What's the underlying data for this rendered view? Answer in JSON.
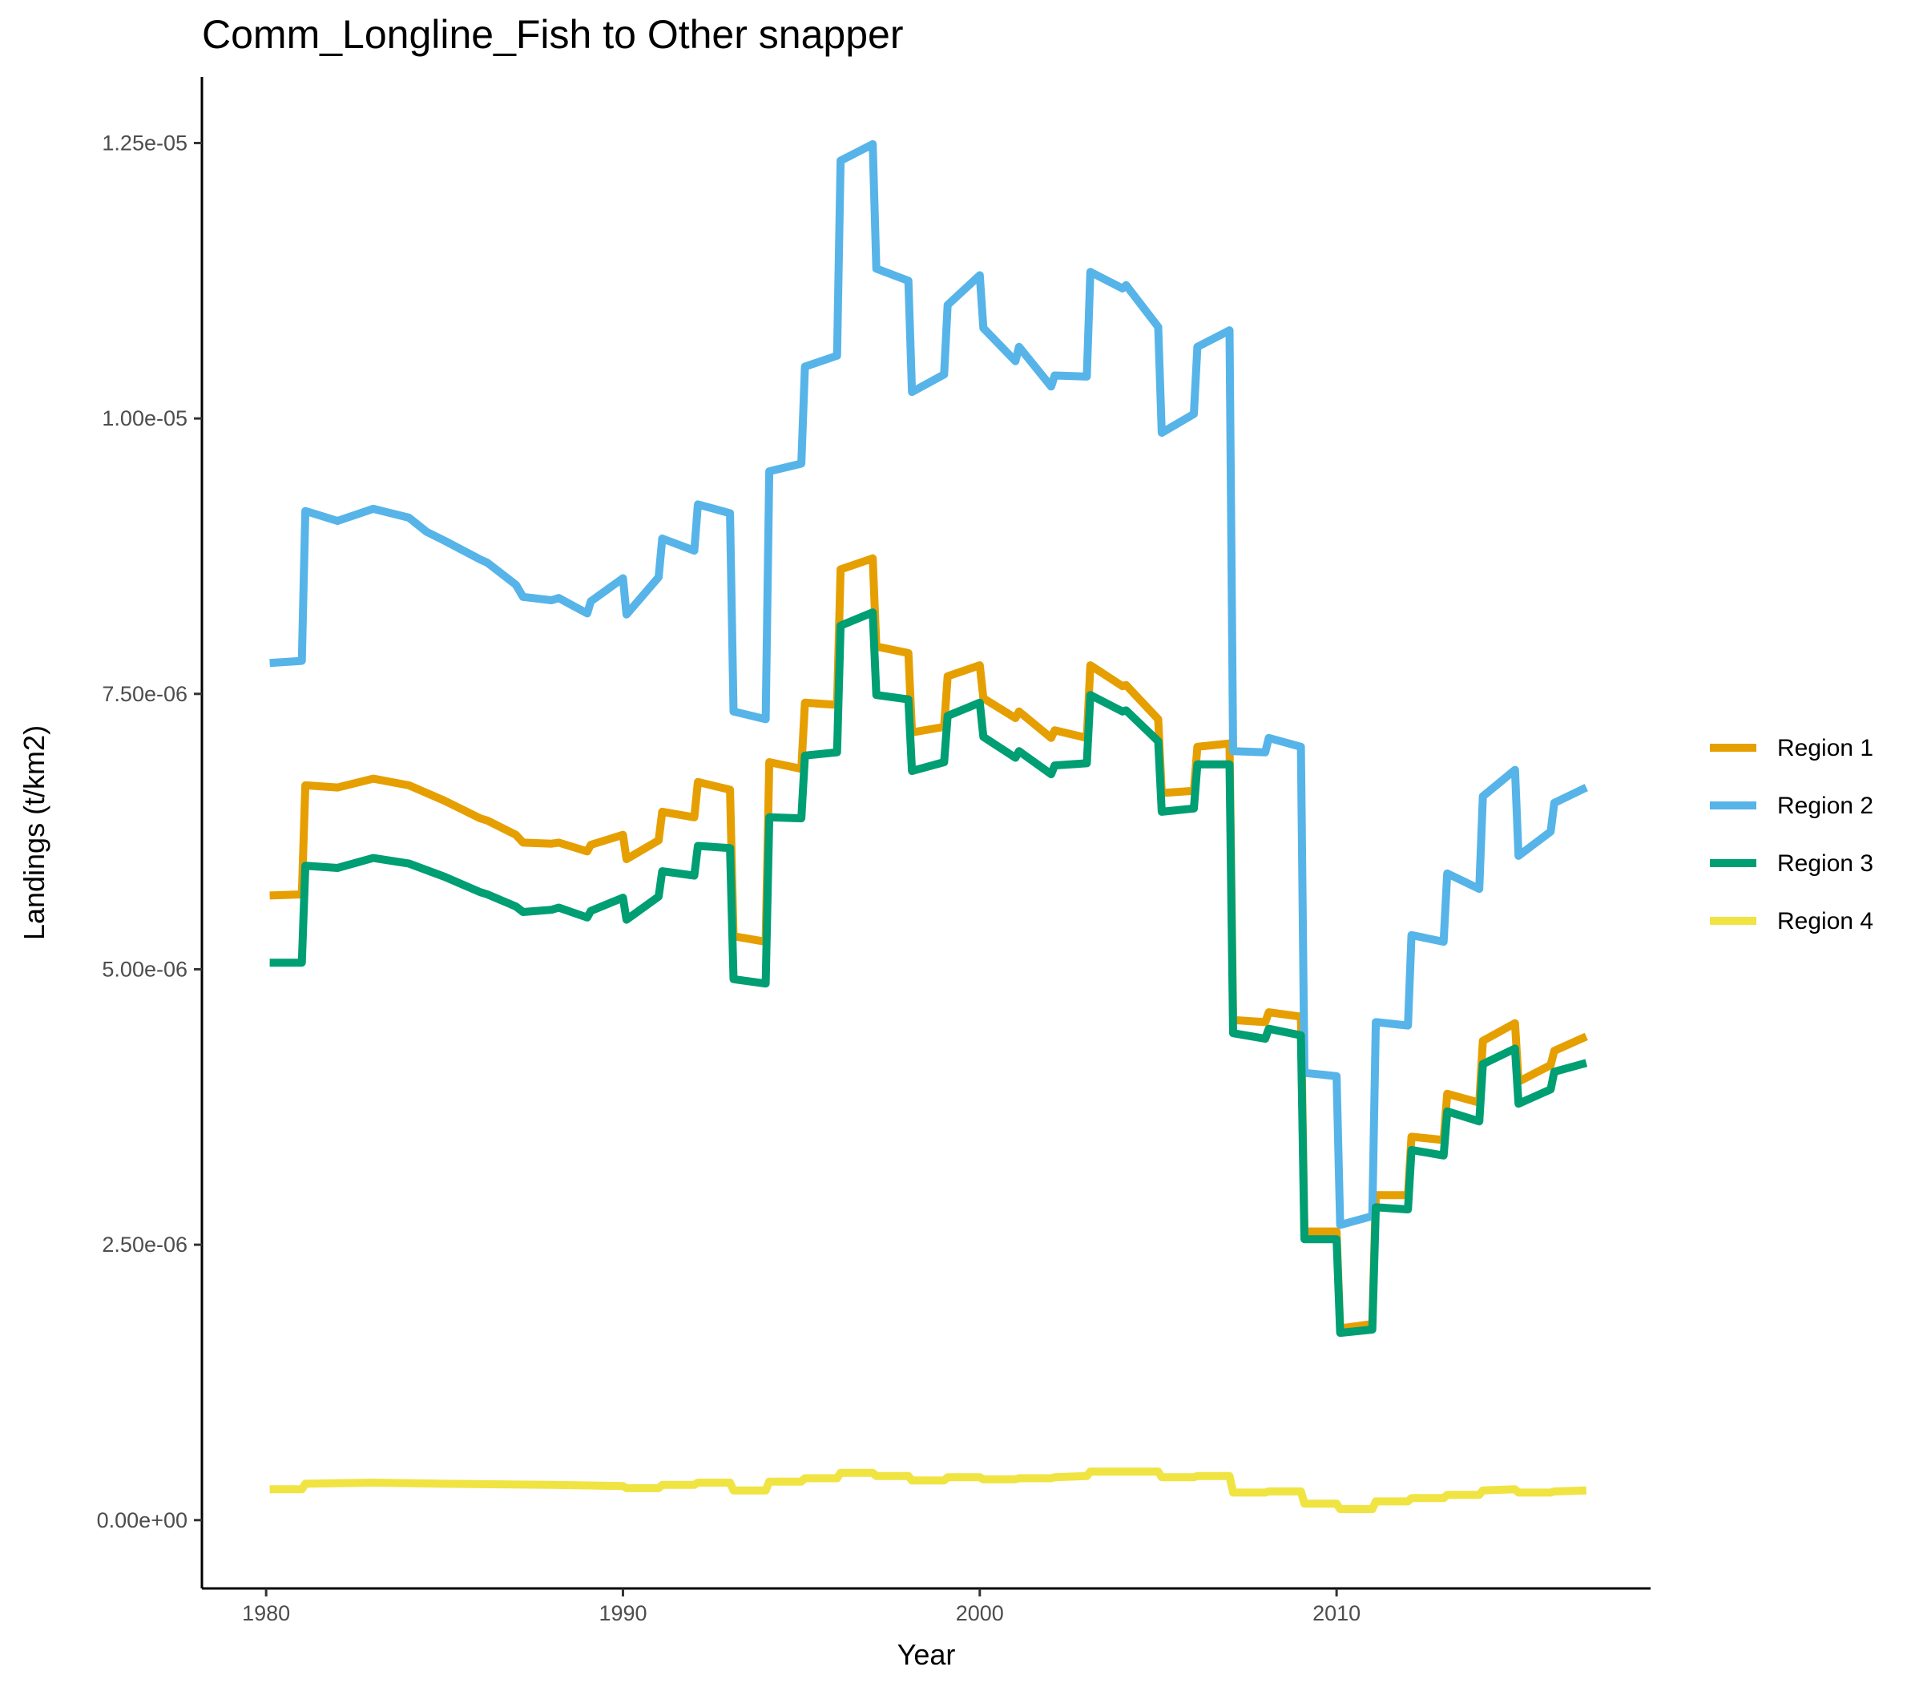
{
  "chart_data": {
    "type": "line",
    "title": "Comm_Longline_Fish to Other snapper",
    "xlabel": "Year",
    "ylabel": "Landings (t/km2)",
    "xlim": [
      1978.2,
      2018.8
    ],
    "ylim": [
      -6.2e-07,
      1.31e-05
    ],
    "x_ticks": [
      1980,
      1990,
      2000,
      2010
    ],
    "x_tick_labels": [
      "1980",
      "1990",
      "2000",
      "2010"
    ],
    "y_ticks": [
      0,
      2.5e-06,
      5e-06,
      7.5e-06,
      1e-05,
      1.25e-05
    ],
    "y_tick_labels": [
      "0.00e+00",
      "2.50e-06",
      "5.00e-06",
      "7.50e-06",
      "1.00e-05",
      "1.25e-05"
    ],
    "grid": false,
    "legend_position": "right",
    "series": [
      {
        "name": "Region 1",
        "color": "#E69F00",
        "points": [
          [
            1980.1,
            5.67e-06
          ],
          [
            1981,
            5.68e-06
          ],
          [
            1981.1,
            6.67e-06
          ],
          [
            1982,
            6.65e-06
          ],
          [
            1983,
            6.73e-06
          ],
          [
            1984,
            6.67e-06
          ],
          [
            1985,
            6.53e-06
          ],
          [
            1986,
            6.37e-06
          ],
          [
            1986.2,
            6.35e-06
          ],
          [
            1987,
            6.22e-06
          ],
          [
            1987.2,
            6.15e-06
          ],
          [
            1988,
            6.14e-06
          ],
          [
            1988.2,
            6.15e-06
          ],
          [
            1989,
            6.07e-06
          ],
          [
            1989.1,
            6.13e-06
          ],
          [
            1990,
            6.22e-06
          ],
          [
            1990.1,
            6e-06
          ],
          [
            1991,
            6.17e-06
          ],
          [
            1991.1,
            6.43e-06
          ],
          [
            1992,
            6.38e-06
          ],
          [
            1992.1,
            6.7e-06
          ],
          [
            1993,
            6.63e-06
          ],
          [
            1993.1,
            5.3e-06
          ],
          [
            1994,
            5.25e-06
          ],
          [
            1994.1,
            6.88e-06
          ],
          [
            1995,
            6.82e-06
          ],
          [
            1995.1,
            7.42e-06
          ],
          [
            1996,
            7.4e-06
          ],
          [
            1996.1,
            8.63e-06
          ],
          [
            1997,
            8.73e-06
          ],
          [
            1997.1,
            7.93e-06
          ],
          [
            1998,
            7.87e-06
          ],
          [
            1998.1,
            7.15e-06
          ],
          [
            1999,
            7.2e-06
          ],
          [
            1999.1,
            7.66e-06
          ],
          [
            2000,
            7.76e-06
          ],
          [
            2000.1,
            7.46e-06
          ],
          [
            2001,
            7.28e-06
          ],
          [
            2001.1,
            7.34e-06
          ],
          [
            2002,
            7.1e-06
          ],
          [
            2002.1,
            7.17e-06
          ],
          [
            2003,
            7.1e-06
          ],
          [
            2003.1,
            7.76e-06
          ],
          [
            2004,
            7.57e-06
          ],
          [
            2004.1,
            7.58e-06
          ],
          [
            2005,
            7.27e-06
          ],
          [
            2005.1,
            6.6e-06
          ],
          [
            2006,
            6.62e-06
          ],
          [
            2006.1,
            7.02e-06
          ],
          [
            2007,
            7.05e-06
          ],
          [
            2007.1,
            4.54e-06
          ],
          [
            2008,
            4.52e-06
          ],
          [
            2008.1,
            4.61e-06
          ],
          [
            2009,
            4.57e-06
          ],
          [
            2009.1,
            2.62e-06
          ],
          [
            2010,
            2.62e-06
          ],
          [
            2010.1,
            1.74e-06
          ],
          [
            2011,
            1.78e-06
          ],
          [
            2011.1,
            2.95e-06
          ],
          [
            2012,
            2.95e-06
          ],
          [
            2012.1,
            3.48e-06
          ],
          [
            2013,
            3.45e-06
          ],
          [
            2013.1,
            3.87e-06
          ],
          [
            2014,
            3.79e-06
          ],
          [
            2014.1,
            4.35e-06
          ],
          [
            2015,
            4.51e-06
          ],
          [
            2015.1,
            3.98e-06
          ],
          [
            2016,
            4.13e-06
          ],
          [
            2016.1,
            4.26e-06
          ],
          [
            2017,
            4.39e-06
          ]
        ]
      },
      {
        "name": "Region 2",
        "color": "#56B4E9",
        "points": [
          [
            1980.1,
            7.78e-06
          ],
          [
            1981,
            7.8e-06
          ],
          [
            1981.1,
            9.16e-06
          ],
          [
            1982,
            9.07e-06
          ],
          [
            1983,
            9.18e-06
          ],
          [
            1984,
            9.1e-06
          ],
          [
            1984.5,
            8.97e-06
          ],
          [
            1985,
            8.89e-06
          ],
          [
            1986,
            8.72e-06
          ],
          [
            1986.2,
            8.69e-06
          ],
          [
            1987,
            8.49e-06
          ],
          [
            1987.2,
            8.38e-06
          ],
          [
            1988,
            8.35e-06
          ],
          [
            1988.2,
            8.37e-06
          ],
          [
            1989,
            8.23e-06
          ],
          [
            1989.1,
            8.34e-06
          ],
          [
            1990,
            8.55e-06
          ],
          [
            1990.1,
            8.22e-06
          ],
          [
            1991,
            8.56e-06
          ],
          [
            1991.1,
            8.91e-06
          ],
          [
            1992,
            8.8e-06
          ],
          [
            1992.1,
            9.22e-06
          ],
          [
            1993,
            9.14e-06
          ],
          [
            1993.1,
            7.34e-06
          ],
          [
            1994,
            7.27e-06
          ],
          [
            1994.1,
            9.52e-06
          ],
          [
            1995,
            9.59e-06
          ],
          [
            1995.1,
            1.047e-05
          ],
          [
            1996,
            1.057e-05
          ],
          [
            1996.1,
            1.234e-05
          ],
          [
            1997,
            1.249e-05
          ],
          [
            1997.1,
            1.136e-05
          ],
          [
            1998,
            1.125e-05
          ],
          [
            1998.1,
            1.024e-05
          ],
          [
            1999,
            1.04e-05
          ],
          [
            1999.1,
            1.103e-05
          ],
          [
            2000,
            1.13e-05
          ],
          [
            2000.1,
            1.082e-05
          ],
          [
            2001,
            1.052e-05
          ],
          [
            2001.1,
            1.065e-05
          ],
          [
            2002,
            1.029e-05
          ],
          [
            2002.1,
            1.039e-05
          ],
          [
            2003,
            1.038e-05
          ],
          [
            2003.1,
            1.133e-05
          ],
          [
            2004,
            1.118e-05
          ],
          [
            2004.1,
            1.121e-05
          ],
          [
            2005,
            1.083e-05
          ],
          [
            2005.1,
            9.87e-06
          ],
          [
            2006,
            1.004e-05
          ],
          [
            2006.1,
            1.065e-05
          ],
          [
            2007,
            1.08e-05
          ],
          [
            2007.1,
            6.98e-06
          ],
          [
            2008,
            6.97e-06
          ],
          [
            2008.1,
            7.1e-06
          ],
          [
            2009,
            7.02e-06
          ],
          [
            2009.1,
            4.06e-06
          ],
          [
            2010,
            4.03e-06
          ],
          [
            2010.1,
            2.68e-06
          ],
          [
            2011,
            2.76e-06
          ],
          [
            2011.1,
            4.52e-06
          ],
          [
            2012,
            4.49e-06
          ],
          [
            2012.1,
            5.31e-06
          ],
          [
            2013,
            5.25e-06
          ],
          [
            2013.1,
            5.87e-06
          ],
          [
            2014,
            5.73e-06
          ],
          [
            2014.1,
            6.57e-06
          ],
          [
            2015,
            6.81e-06
          ],
          [
            2015.1,
            6.03e-06
          ],
          [
            2016,
            6.25e-06
          ],
          [
            2016.1,
            6.51e-06
          ],
          [
            2017,
            6.65e-06
          ]
        ]
      },
      {
        "name": "Region 3",
        "color": "#009E73",
        "points": [
          [
            1980.1,
            5.06e-06
          ],
          [
            1981,
            5.06e-06
          ],
          [
            1981.1,
            5.94e-06
          ],
          [
            1982,
            5.92e-06
          ],
          [
            1983,
            6.01e-06
          ],
          [
            1984,
            5.96e-06
          ],
          [
            1985,
            5.84e-06
          ],
          [
            1986,
            5.7e-06
          ],
          [
            1986.2,
            5.68e-06
          ],
          [
            1987,
            5.57e-06
          ],
          [
            1987.2,
            5.52e-06
          ],
          [
            1988,
            5.54e-06
          ],
          [
            1988.2,
            5.56e-06
          ],
          [
            1989,
            5.47e-06
          ],
          [
            1989.1,
            5.53e-06
          ],
          [
            1990,
            5.65e-06
          ],
          [
            1990.1,
            5.45e-06
          ],
          [
            1991,
            5.66e-06
          ],
          [
            1991.1,
            5.89e-06
          ],
          [
            1992,
            5.85e-06
          ],
          [
            1992.1,
            6.12e-06
          ],
          [
            1993,
            6.1e-06
          ],
          [
            1993.1,
            4.91e-06
          ],
          [
            1994,
            4.87e-06
          ],
          [
            1994.1,
            6.38e-06
          ],
          [
            1995,
            6.37e-06
          ],
          [
            1995.1,
            6.94e-06
          ],
          [
            1996,
            6.97e-06
          ],
          [
            1996.1,
            8.12e-06
          ],
          [
            1997,
            8.24e-06
          ],
          [
            1997.1,
            7.49e-06
          ],
          [
            1998,
            7.45e-06
          ],
          [
            1998.1,
            6.8e-06
          ],
          [
            1999,
            6.88e-06
          ],
          [
            1999.1,
            7.3e-06
          ],
          [
            2000,
            7.42e-06
          ],
          [
            2000.1,
            7.11e-06
          ],
          [
            2001,
            6.92e-06
          ],
          [
            2001.1,
            6.98e-06
          ],
          [
            2002,
            6.77e-06
          ],
          [
            2002.1,
            6.85e-06
          ],
          [
            2003,
            6.87e-06
          ],
          [
            2003.1,
            7.49e-06
          ],
          [
            2004,
            7.34e-06
          ],
          [
            2004.1,
            7.35e-06
          ],
          [
            2005,
            7.07e-06
          ],
          [
            2005.1,
            6.43e-06
          ],
          [
            2006,
            6.46e-06
          ],
          [
            2006.1,
            6.86e-06
          ],
          [
            2007,
            6.86e-06
          ],
          [
            2007.1,
            4.42e-06
          ],
          [
            2008,
            4.37e-06
          ],
          [
            2008.1,
            4.46e-06
          ],
          [
            2009,
            4.4e-06
          ],
          [
            2009.1,
            2.55e-06
          ],
          [
            2010,
            2.55e-06
          ],
          [
            2010.1,
            1.7e-06
          ],
          [
            2011,
            1.73e-06
          ],
          [
            2011.1,
            2.84e-06
          ],
          [
            2012,
            2.82e-06
          ],
          [
            2012.1,
            3.36e-06
          ],
          [
            2013,
            3.31e-06
          ],
          [
            2013.1,
            3.71e-06
          ],
          [
            2014,
            3.62e-06
          ],
          [
            2014.1,
            4.14e-06
          ],
          [
            2015,
            4.28e-06
          ],
          [
            2015.1,
            3.78e-06
          ],
          [
            2016,
            3.91e-06
          ],
          [
            2016.1,
            4.07e-06
          ],
          [
            2017,
            4.15e-06
          ]
        ]
      },
      {
        "name": "Region 4",
        "color": "#F0E442",
        "points": [
          [
            1980.1,
            2.8e-07
          ],
          [
            1981,
            2.8e-07
          ],
          [
            1981.1,
            3.3e-07
          ],
          [
            1983,
            3.4e-07
          ],
          [
            1985,
            3.3e-07
          ],
          [
            1988,
            3.2e-07
          ],
          [
            1990,
            3.1e-07
          ],
          [
            1990.1,
            2.9e-07
          ],
          [
            1991,
            2.9e-07
          ],
          [
            1991.1,
            3.2e-07
          ],
          [
            1992,
            3.2e-07
          ],
          [
            1992.1,
            3.4e-07
          ],
          [
            1993,
            3.4e-07
          ],
          [
            1993.1,
            2.7e-07
          ],
          [
            1994,
            2.7e-07
          ],
          [
            1994.1,
            3.5e-07
          ],
          [
            1995,
            3.5e-07
          ],
          [
            1995.1,
            3.8e-07
          ],
          [
            1996,
            3.8e-07
          ],
          [
            1996.1,
            4.3e-07
          ],
          [
            1997,
            4.3e-07
          ],
          [
            1997.1,
            4e-07
          ],
          [
            1998,
            4e-07
          ],
          [
            1998.1,
            3.6e-07
          ],
          [
            1999,
            3.6e-07
          ],
          [
            1999.1,
            3.9e-07
          ],
          [
            2000,
            3.9e-07
          ],
          [
            2000.1,
            3.7e-07
          ],
          [
            2001,
            3.7e-07
          ],
          [
            2001.1,
            3.8e-07
          ],
          [
            2002,
            3.8e-07
          ],
          [
            2002.1,
            3.9e-07
          ],
          [
            2003,
            4e-07
          ],
          [
            2003.1,
            4.4e-07
          ],
          [
            2005,
            4.4e-07
          ],
          [
            2005.1,
            3.9e-07
          ],
          [
            2006,
            3.9e-07
          ],
          [
            2006.1,
            4e-07
          ],
          [
            2007,
            4e-07
          ],
          [
            2007.1,
            2.5e-07
          ],
          [
            2008,
            2.5e-07
          ],
          [
            2008.1,
            2.6e-07
          ],
          [
            2009,
            2.6e-07
          ],
          [
            2009.1,
            1.5e-07
          ],
          [
            2010,
            1.5e-07
          ],
          [
            2010.1,
            1e-07
          ],
          [
            2011,
            1e-07
          ],
          [
            2011.1,
            1.7e-07
          ],
          [
            2012,
            1.7e-07
          ],
          [
            2012.1,
            2e-07
          ],
          [
            2013,
            2e-07
          ],
          [
            2013.1,
            2.3e-07
          ],
          [
            2014,
            2.3e-07
          ],
          [
            2014.1,
            2.7e-07
          ],
          [
            2015,
            2.8e-07
          ],
          [
            2015.1,
            2.5e-07
          ],
          [
            2016,
            2.5e-07
          ],
          [
            2016.1,
            2.6e-07
          ],
          [
            2017,
            2.7e-07
          ]
        ]
      }
    ]
  }
}
